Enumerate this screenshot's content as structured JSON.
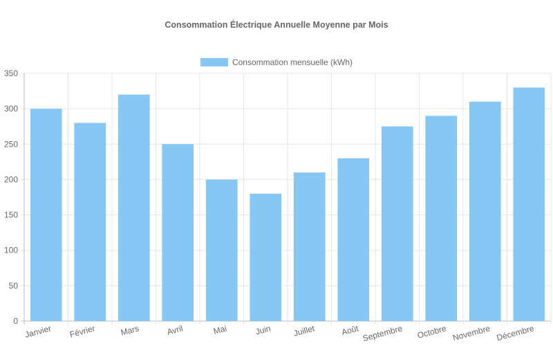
{
  "chart_data": {
    "type": "bar",
    "title": "Consommation Électrique Annuelle Moyenne par Mois",
    "categories": [
      "Janvier",
      "Février",
      "Mars",
      "Avril",
      "Mai",
      "Juin",
      "Juillet",
      "Août",
      "Septembre",
      "Octobre",
      "Novembre",
      "Décembre"
    ],
    "series": [
      {
        "name": "Consommation mensuelle (kWh)",
        "values": [
          300,
          280,
          320,
          250,
          200,
          180,
          210,
          230,
          275,
          290,
          310,
          330
        ]
      }
    ],
    "xlabel": "",
    "ylabel": "",
    "ylim": [
      0,
      350
    ],
    "yticks": [
      0,
      50,
      100,
      150,
      200,
      250,
      300,
      350
    ],
    "grid": true,
    "legend_position": "top",
    "colors": {
      "bar": "#86c7f3",
      "grid": "#e5e5e5",
      "text": "#666666"
    }
  }
}
